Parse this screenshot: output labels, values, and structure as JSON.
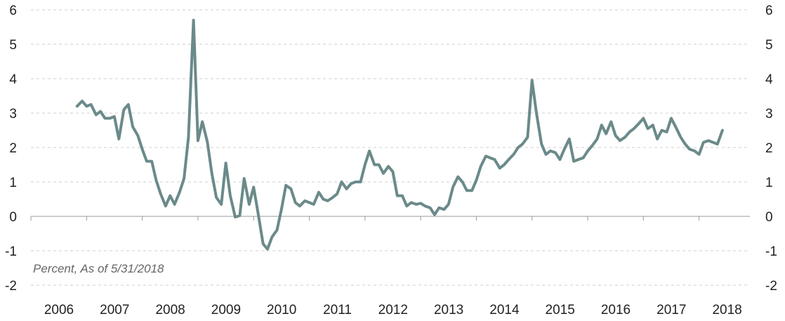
{
  "chart_data": {
    "type": "line",
    "title": "",
    "xlabel": "",
    "ylabel": "",
    "note": "Percent, As of 5/31/2018",
    "ylim": [
      -2,
      6
    ],
    "yticks": [
      -2,
      -1,
      0,
      1,
      2,
      3,
      4,
      5,
      6
    ],
    "xlim": [
      2006.0,
      2018.5
    ],
    "xticks": [
      2006,
      2007,
      2008,
      2009,
      2010,
      2011,
      2012,
      2013,
      2014,
      2015,
      2016,
      2017,
      2018
    ],
    "grid": true,
    "legend": "none",
    "line_color": "#6b8a8a",
    "series": [
      {
        "x": [
          2006.83,
          2006.92,
          2007.0,
          2007.08,
          2007.17,
          2007.25,
          2007.33,
          2007.42,
          2007.5,
          2007.58,
          2007.67,
          2007.75,
          2007.83,
          2007.92,
          2008.0,
          2008.08,
          2008.17,
          2008.25,
          2008.33,
          2008.42,
          2008.5,
          2008.58,
          2008.67,
          2008.75,
          2008.83,
          2008.92,
          2009.0,
          2009.08,
          2009.17,
          2009.25,
          2009.33,
          2009.42,
          2009.5,
          2009.58,
          2009.67,
          2009.75,
          2009.83,
          2009.92,
          2010.0,
          2010.08,
          2010.17,
          2010.25,
          2010.33,
          2010.42,
          2010.5,
          2010.58,
          2010.67,
          2010.75,
          2010.83,
          2010.92,
          2011.0,
          2011.08,
          2011.17,
          2011.25,
          2011.33,
          2011.42,
          2011.5,
          2011.58,
          2011.67,
          2011.75,
          2011.83,
          2011.92,
          2012.0,
          2012.08,
          2012.17,
          2012.25,
          2012.33,
          2012.42,
          2012.5,
          2012.58,
          2012.67,
          2012.75,
          2012.83,
          2012.92,
          2013.0,
          2013.08,
          2013.17,
          2013.25,
          2013.33,
          2013.42,
          2013.5,
          2013.58,
          2013.67,
          2013.75,
          2013.83,
          2013.92,
          2014.0,
          2014.08,
          2014.17,
          2014.25,
          2014.33,
          2014.42,
          2014.5,
          2014.58,
          2014.67,
          2014.75,
          2014.83,
          2014.92,
          2015.0,
          2015.08,
          2015.17,
          2015.25,
          2015.33,
          2015.42,
          2015.5,
          2015.58,
          2015.67,
          2015.75,
          2015.83,
          2015.92,
          2016.0,
          2016.08,
          2016.17,
          2016.25,
          2016.33,
          2016.42,
          2016.5,
          2016.58,
          2016.67,
          2016.75,
          2016.83,
          2016.92,
          2017.0,
          2017.08,
          2017.17,
          2017.25,
          2017.33,
          2017.42,
          2017.5,
          2017.58,
          2017.67,
          2017.75,
          2017.83,
          2017.92,
          2018.0,
          2018.08,
          2018.17,
          2018.25,
          2018.33,
          2018.42
        ],
        "y": [
          3.2,
          3.35,
          3.2,
          3.25,
          2.95,
          3.05,
          2.85,
          2.85,
          2.9,
          2.25,
          3.1,
          3.25,
          2.6,
          2.35,
          1.95,
          1.6,
          1.6,
          1.05,
          0.65,
          0.3,
          0.6,
          0.35,
          0.7,
          1.1,
          2.3,
          5.7,
          2.2,
          2.75,
          2.15,
          1.25,
          0.55,
          0.35,
          1.55,
          0.6,
          -0.02,
          0.02,
          1.1,
          0.35,
          0.85,
          0.1,
          -0.8,
          -0.95,
          -0.6,
          -0.4,
          0.2,
          0.9,
          0.8,
          0.4,
          0.3,
          0.45,
          0.4,
          0.35,
          0.7,
          0.5,
          0.45,
          0.55,
          0.65,
          1.0,
          0.8,
          0.95,
          1.0,
          1.0,
          1.5,
          1.9,
          1.5,
          1.5,
          1.25,
          1.45,
          1.3,
          0.6,
          0.6,
          0.3,
          0.4,
          0.35,
          0.38,
          0.3,
          0.25,
          0.05,
          0.25,
          0.2,
          0.35,
          0.85,
          1.15,
          1.0,
          0.75,
          0.75,
          1.05,
          1.45,
          1.75,
          1.7,
          1.65,
          1.4,
          1.5,
          1.65,
          1.8,
          2.0,
          2.1,
          2.3,
          3.95,
          3.0,
          2.1,
          1.8,
          1.9,
          1.85,
          1.65,
          1.95,
          2.25,
          1.6,
          1.65,
          1.7,
          1.9,
          2.05,
          2.25,
          2.65,
          2.4,
          2.75,
          2.35,
          2.2,
          2.3,
          2.45,
          2.55,
          2.7,
          2.85,
          2.55,
          2.65,
          2.25,
          2.5,
          2.45,
          2.85,
          2.6,
          2.3,
          2.1,
          1.95,
          1.9,
          1.8,
          2.15,
          2.2,
          2.15,
          2.1,
          2.5
        ]
      }
    ]
  }
}
